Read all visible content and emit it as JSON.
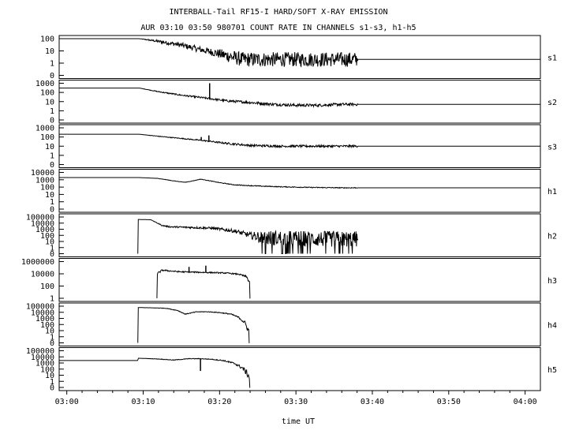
{
  "title": "INTERBALL-Tail RF15-I HARD/SOFT X-RAY EMISSION",
  "subtitle": "AUR 03:10 03:50 980701  COUNT RATE IN CHANNELS s1-s3, h1-h5",
  "xlabel": "time UT",
  "x_ticks": [
    "03:00",
    "03:10",
    "03:20",
    "03:30",
    "03:40",
    "03:50",
    "04:00"
  ],
  "chart_data": {
    "type": "line",
    "title": "INTERBALL-Tail RF15-I HARD/SOFT X-RAY EMISSION",
    "subtitle": "AUR 03:10 03:50 980701  COUNT RATE IN CHANNELS s1-s3, h1-h5",
    "xlabel": "time UT",
    "x_ticks": [
      "03:00",
      "03:10",
      "03:20",
      "03:30",
      "03:40",
      "03:50",
      "04:00"
    ],
    "xlim_minutes_after_0300": [
      -1,
      62
    ],
    "y_scale": "log",
    "panels": [
      {
        "name": "s1",
        "y_ticks": [
          "100",
          "10",
          "1",
          "0"
        ],
        "y_decades_top": 2,
        "series": [
          {
            "x": [
              -1,
              9.5,
              12,
              15,
              17,
              19,
              21,
              23,
              26,
              29,
              33,
              36,
              38,
              38.1,
              62
            ],
            "y": [
              100,
              100,
              60,
              30,
              15,
              8,
              4,
              2,
              2,
              2,
              2,
              2,
              2,
              2,
              2
            ],
            "noise_decades": [
              0,
              0,
              0.12,
              0.2,
              0.25,
              0.3,
              0.5,
              0.6,
              0.6,
              0.6,
              0.6,
              0.6,
              0.6,
              0,
              0
            ]
          }
        ]
      },
      {
        "name": "s2",
        "y_ticks": [
          "1000",
          "100",
          "10",
          "1",
          "0"
        ],
        "y_decades_top": 3,
        "series": [
          {
            "x": [
              -1,
              9.5,
              12,
              15,
              18,
              21,
              24,
              27,
              30,
              33,
              36,
              38,
              38.1,
              62
            ],
            "y": [
              300,
              300,
              120,
              50,
              25,
              12,
              8,
              5,
              4,
              4,
              5,
              5,
              5,
              5
            ],
            "noise_decades": [
              0,
              0,
              0.05,
              0.08,
              0.1,
              0.12,
              0.15,
              0.15,
              0.15,
              0.15,
              0.15,
              0.15,
              0,
              0
            ]
          }
        ],
        "spikes": [
          {
            "x": 18.7,
            "y": 1000
          }
        ]
      },
      {
        "name": "s3",
        "y_ticks": [
          "1000",
          "100",
          "10",
          "1",
          "0"
        ],
        "y_decades_top": 3,
        "series": [
          {
            "x": [
              -1,
              9.5,
              12,
              15,
              18,
              21,
              24,
              28,
              32,
              36,
              38,
              38.1,
              62
            ],
            "y": [
              200,
              200,
              120,
              70,
              40,
              20,
              12,
              10,
              10,
              10,
              10,
              10,
              10
            ],
            "noise_decades": [
              0,
              0,
              0.04,
              0.05,
              0.07,
              0.1,
              0.12,
              0.12,
              0.12,
              0.12,
              0.12,
              0,
              0
            ]
          }
        ],
        "spikes": [
          {
            "x": 17.6,
            "y": 100
          },
          {
            "x": 18.6,
            "y": 150
          }
        ]
      },
      {
        "name": "h1",
        "y_ticks": [
          "10000",
          "1000",
          "100",
          "10",
          "1",
          "0"
        ],
        "y_decades_top": 4,
        "series": [
          {
            "x": [
              -1,
              9.5,
              12,
              14,
              15.5,
              16.5,
              17.5,
              18.5,
              20,
              22,
              25,
              28,
              32,
              36,
              38,
              38.1,
              62
            ],
            "y": [
              2000,
              2000,
              1500,
              700,
              450,
              700,
              1200,
              800,
              400,
              200,
              140,
              110,
              90,
              80,
              80,
              80,
              80
            ],
            "noise_decades": [
              0,
              0,
              0.02,
              0.02,
              0.02,
              0.02,
              0.03,
              0.03,
              0.04,
              0.05,
              0.06,
              0.06,
              0.06,
              0.06,
              0.06,
              0,
              0
            ]
          }
        ]
      },
      {
        "name": "h2",
        "y_ticks": [
          "100000",
          "10000",
          "1000",
          "100",
          "10",
          "1",
          "0"
        ],
        "y_decades_top": 5,
        "series": [
          {
            "x": [
              9.3,
              9.35,
              11,
              12.5,
              13.5,
              16,
              19,
              22,
              24,
              26,
              30,
              34,
              38,
              38.1
            ],
            "y": [
              0,
              40000,
              35000,
              4000,
              2500,
              2000,
              1500,
              500,
              100,
              40,
              30,
              25,
              25,
              25
            ],
            "noise_decades": [
              0,
              0,
              0,
              0.1,
              0.12,
              0.15,
              0.2,
              0.3,
              0.5,
              1.2,
              1.3,
              1.3,
              1.3,
              0
            ]
          }
        ]
      },
      {
        "name": "h3",
        "y_ticks": [
          "1000000",
          "10000",
          "100",
          "1"
        ],
        "y_decades_top": 6,
        "series": [
          {
            "x": [
              11.8,
              11.85,
              12.5,
              13.5,
              15,
              17,
              19,
              21,
              22.5,
              23.5,
              23.9,
              24.0
            ],
            "y": [
              0,
              1000,
              8000,
              5000,
              3000,
              2500,
              2000,
              1500,
              800,
              200,
              10,
              0
            ],
            "noise_decades": [
              0,
              0.3,
              0.2,
              0.15,
              0.15,
              0.15,
              0.15,
              0.15,
              0.15,
              0.25,
              0.4,
              0
            ]
          }
        ],
        "spikes": [
          {
            "x": 16,
            "y": 50000
          },
          {
            "x": 18.2,
            "y": 100000
          }
        ]
      },
      {
        "name": "h4",
        "y_ticks": [
          "100000",
          "10000",
          "1000",
          "100",
          "10",
          "1",
          "0"
        ],
        "y_decades_top": 5,
        "series": [
          {
            "x": [
              9.3,
              9.35,
              12,
              13,
              14.5,
              15.5,
              17,
              18.5,
              20,
              21.5,
              22.5,
              23.3,
              23.8,
              23.9
            ],
            "y": [
              0,
              60000,
              50000,
              45000,
              20000,
              5000,
              12000,
              12000,
              9000,
              5000,
              1500,
              200,
              10,
              0
            ],
            "noise_decades": [
              0,
              0,
              0.03,
              0.04,
              0.05,
              0.06,
              0.05,
              0.05,
              0.06,
              0.08,
              0.12,
              0.3,
              0.5,
              0
            ]
          }
        ]
      },
      {
        "name": "h5",
        "y_ticks": [
          "100000",
          "10000",
          "1000",
          "100",
          "10",
          "1",
          "0"
        ],
        "y_decades_top": 5,
        "series": [
          {
            "x": [
              -1,
              9.3,
              9.35,
              12,
              14,
              16,
              17.5,
              19,
              20.5,
              22,
              23,
              23.6,
              23.9,
              24.0
            ],
            "y": [
              2500,
              2500,
              6000,
              4500,
              3000,
              5000,
              5000,
              4000,
              2500,
              800,
              150,
              20,
              5,
              0
            ],
            "noise_decades": [
              0,
              0,
              0,
              0.04,
              0.05,
              0.05,
              0.05,
              0.06,
              0.1,
              0.15,
              0.3,
              0.5,
              0.6,
              0
            ]
          }
        ],
        "spikes": [
          {
            "x": 17.5,
            "y": 50
          }
        ]
      }
    ]
  }
}
